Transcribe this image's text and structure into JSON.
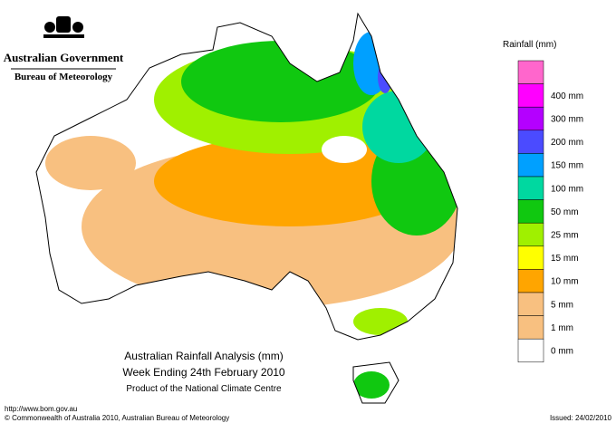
{
  "header": {
    "government": "Australian Government",
    "agency": "Bureau of Meteorology"
  },
  "title": {
    "line1": "Australian Rainfall Analysis (mm)",
    "line2": "Week Ending 24th February 2010",
    "line3": "Product of the National Climate Centre"
  },
  "legend": {
    "title": "Rainfall (mm)",
    "top_color": "#ff66cc",
    "items": [
      {
        "label": "400 mm",
        "color": "#ff00ff"
      },
      {
        "label": "300 mm",
        "color": "#b400ff"
      },
      {
        "label": "200 mm",
        "color": "#4b4bff"
      },
      {
        "label": "150 mm",
        "color": "#00a0ff"
      },
      {
        "label": "100 mm",
        "color": "#00d8a0"
      },
      {
        "label": "50 mm",
        "color": "#10c810"
      },
      {
        "label": "25 mm",
        "color": "#a0f000"
      },
      {
        "label": "15 mm",
        "color": "#ffff00"
      },
      {
        "label": "10 mm",
        "color": "#ffa500"
      },
      {
        "label": "5 mm",
        "color": "#f8c080"
      },
      {
        "label": "1 mm",
        "color": "#f8c080"
      },
      {
        "label": "0 mm",
        "color": "#ffffff"
      }
    ]
  },
  "footer": {
    "url": "http://www.bom.gov.au",
    "copyright": "© Commonwealth of Australia 2010, Australian Bureau of Meteorology",
    "issued": "Issued: 24/02/2010"
  }
}
